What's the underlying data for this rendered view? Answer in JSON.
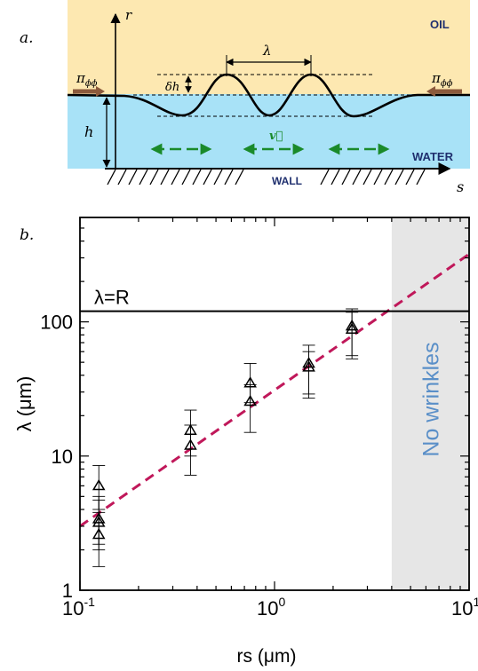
{
  "panel_a": {
    "label": "a.",
    "oil": "OIL",
    "water": "WATER",
    "wall": "WALL",
    "axis_r": "r",
    "axis_s": "s",
    "h": "h",
    "delta_h": "δh",
    "lambda": "λ",
    "pi_left": "π",
    "pi_right": "π",
    "pi_sub": "ϕϕ",
    "velocity": "v⃗",
    "colors": {
      "oil": "#fde8b1",
      "water": "#a8e2f7",
      "arrow_green": "#1a8a2a",
      "arrow_brown": "#8c5a3c",
      "text_blue": "#1f2f6e"
    }
  },
  "panel_b": {
    "label": "b.",
    "no_wrinkles": "No wrinkles",
    "lambda_eq_R": "λ=R",
    "colors": {
      "shade": "#e6e6e6",
      "fit": "#c0185a",
      "no_wrinkles_text": "#5a8fc8"
    }
  },
  "chart_data": {
    "type": "scatter",
    "xscale": "log",
    "yscale": "log",
    "xlim": [
      0.1,
      10
    ],
    "ylim": [
      1,
      600
    ],
    "xlabel": "rs (μm)",
    "ylabel": "λ (μm)",
    "x_ticks": [
      {
        "base": "10",
        "exp": "-1",
        "value": 0.1
      },
      {
        "base": "10",
        "exp": "0",
        "value": 1
      },
      {
        "base": "10",
        "exp": "1",
        "value": 10
      }
    ],
    "y_ticks": [
      {
        "label": "1",
        "value": 1
      },
      {
        "label": "10",
        "value": 10
      },
      {
        "label": "100",
        "value": 100
      }
    ],
    "horizontal_line": {
      "label": "λ=R",
      "y": 120
    },
    "shaded_region": {
      "x_from": 4,
      "x_to": 10,
      "label": "No wrinkles"
    },
    "fit_line": {
      "x": [
        0.1,
        10
      ],
      "y": [
        3,
        320
      ],
      "style": "dashed"
    },
    "points": [
      {
        "x": 0.125,
        "y": 6.0,
        "err": [
          4.0,
          8.5
        ]
      },
      {
        "x": 0.125,
        "y": 3.4,
        "err": [
          2.2,
          5.0
        ]
      },
      {
        "x": 0.125,
        "y": 3.2,
        "err": [
          2.0,
          4.7
        ]
      },
      {
        "x": 0.125,
        "y": 2.6,
        "err": [
          1.5,
          3.8
        ]
      },
      {
        "x": 0.37,
        "y": 15.5,
        "err": [
          10.0,
          22.0
        ]
      },
      {
        "x": 0.37,
        "y": 12.0,
        "err": [
          7.2,
          17.0
        ]
      },
      {
        "x": 0.75,
        "y": 35.0,
        "err": [
          25.0,
          49.0
        ]
      },
      {
        "x": 0.75,
        "y": 25.5,
        "err": [
          15.0,
          34.0
        ]
      },
      {
        "x": 1.5,
        "y": 49.0,
        "err": [
          29.0,
          67.0
        ]
      },
      {
        "x": 1.5,
        "y": 46.0,
        "err": [
          27.0,
          60.0
        ]
      },
      {
        "x": 2.5,
        "y": 93.0,
        "err": [
          56.0,
          125.0
        ]
      },
      {
        "x": 2.5,
        "y": 88.0,
        "err": [
          53.0,
          118.0
        ]
      }
    ]
  }
}
